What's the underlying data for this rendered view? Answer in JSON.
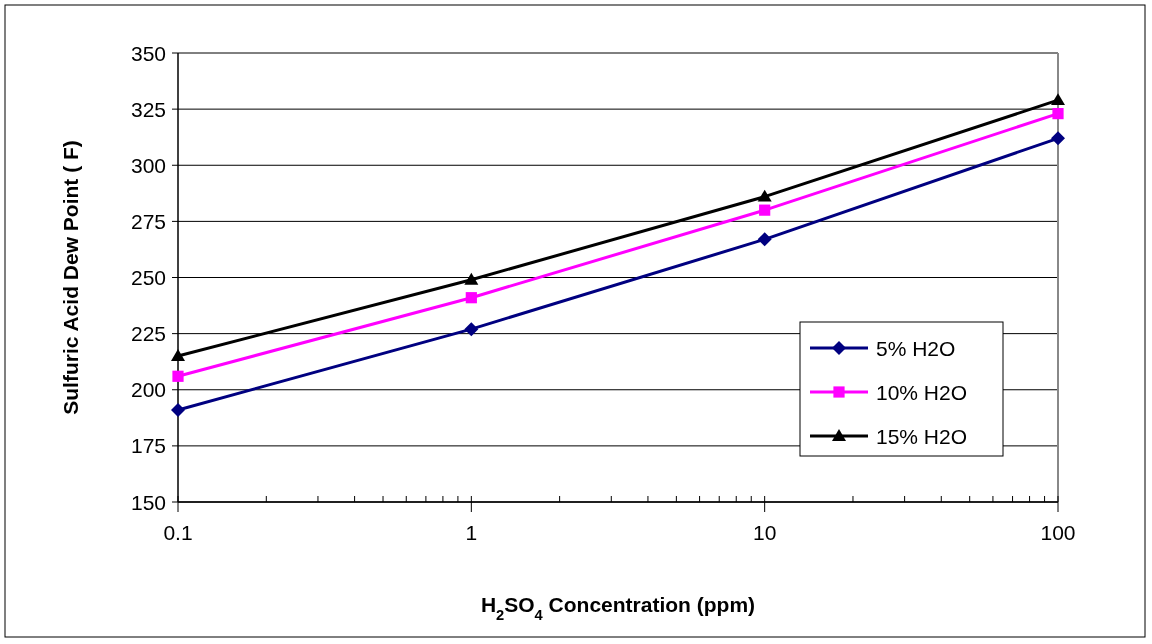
{
  "chart_data": {
    "type": "line",
    "xlabel": "H$_{2}$SO$_{4}$ Concentration (ppm)",
    "ylabel": "Sulfuric Acid Dew Point ( F)",
    "x": [
      0.1,
      1,
      10,
      100
    ],
    "series": [
      {
        "name": "5% H2O",
        "color": "#000080",
        "marker": "diamond",
        "values": [
          191,
          227,
          267,
          312
        ]
      },
      {
        "name": "10% H2O",
        "color": "#ff00ff",
        "marker": "square",
        "values": [
          206,
          241,
          280,
          323
        ]
      },
      {
        "name": "15% H2O",
        "color": "#000000",
        "marker": "triangle",
        "values": [
          215,
          249,
          286,
          329
        ]
      }
    ],
    "log": "x",
    "xlim": [
      0.1,
      100
    ],
    "xticks": [
      0.1,
      1,
      10,
      100
    ],
    "ylim": [
      150,
      350
    ],
    "yticks": [
      150,
      175,
      200,
      225,
      250,
      275,
      300,
      325,
      350
    ],
    "grid": "y",
    "legend": "right"
  }
}
